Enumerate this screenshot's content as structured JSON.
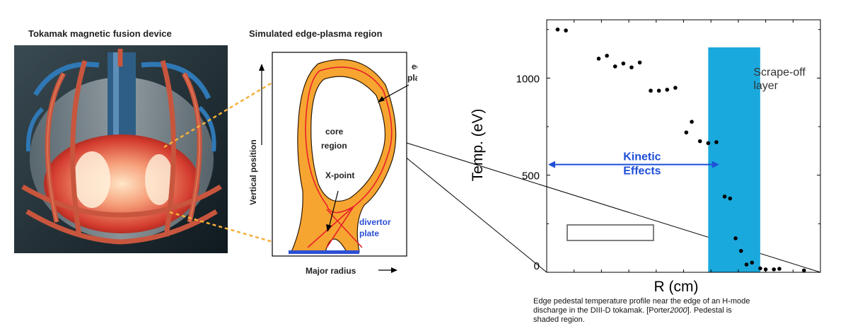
{
  "titles": {
    "device": "Tokamak magnetic fusion device",
    "edge_region": "Simulated edge-plasma region"
  },
  "cross_section": {
    "axis_vertical": "Vertical position",
    "axis_horizontal": "Major radius",
    "label_edge_plasma_1": "edge",
    "label_edge_plasma_2": "plasma",
    "label_core_1": "core",
    "label_core_2": "region",
    "label_xpoint": "X-point",
    "label_divertor_1": "divertor",
    "label_divertor_2": "plate"
  },
  "chart_data": {
    "type": "scatter",
    "ylabel": "Temp. (eV)",
    "xlabel": "R (cm)",
    "yticks": [
      "0",
      "500",
      "1000"
    ],
    "ylim": [
      0,
      1300
    ],
    "x_unit_note": "x values are fractions of the horizontal axis span (tick labels not printed)",
    "points": [
      {
        "x": 0.04,
        "y": 1250
      },
      {
        "x": 0.07,
        "y": 1245
      },
      {
        "x": 0.19,
        "y": 1100
      },
      {
        "x": 0.22,
        "y": 1115
      },
      {
        "x": 0.25,
        "y": 1060
      },
      {
        "x": 0.28,
        "y": 1075
      },
      {
        "x": 0.31,
        "y": 1055
      },
      {
        "x": 0.34,
        "y": 1080
      },
      {
        "x": 0.38,
        "y": 935
      },
      {
        "x": 0.41,
        "y": 935
      },
      {
        "x": 0.44,
        "y": 940
      },
      {
        "x": 0.47,
        "y": 950
      },
      {
        "x": 0.51,
        "y": 720
      },
      {
        "x": 0.53,
        "y": 775
      },
      {
        "x": 0.56,
        "y": 675
      },
      {
        "x": 0.59,
        "y": 665
      },
      {
        "x": 0.62,
        "y": 670
      },
      {
        "x": 0.65,
        "y": 390
      },
      {
        "x": 0.67,
        "y": 380
      },
      {
        "x": 0.69,
        "y": 175
      },
      {
        "x": 0.71,
        "y": 110
      },
      {
        "x": 0.73,
        "y": 40
      },
      {
        "x": 0.75,
        "y": 50
      },
      {
        "x": 0.78,
        "y": 20
      },
      {
        "x": 0.8,
        "y": 15
      },
      {
        "x": 0.83,
        "y": 15
      },
      {
        "x": 0.85,
        "y": 18
      },
      {
        "x": 0.94,
        "y": 10
      }
    ],
    "shaded_region": {
      "x_start": 0.59,
      "x_end": 0.78,
      "label_1": "Scrape-off",
      "label_2": "layer",
      "color": "#1aa9dd"
    },
    "kinetic_arrow": {
      "x_start": 0.0,
      "x_end": 0.63,
      "y": 555,
      "label_1": "Kinetic",
      "label_2": "Effects",
      "color": "#1f4fd8"
    }
  },
  "caption": {
    "line1": "Edge pedestal temperature  profile near the edge of an H-mode",
    "line2": "discharge in the DIII-D tokamak. [Porter",
    "ref_year": "2000",
    "line2_end": "]. Pedestal is",
    "line3": "shaded region."
  },
  "colors": {
    "plasma_orange": "#f7a531",
    "separatrix_red": "#e8202a",
    "divertor_blue": "#2c4fd6",
    "dashed_arrow": "#f5b038",
    "coil_copper": "#c8553d",
    "coil_blue": "#2f78b5"
  }
}
